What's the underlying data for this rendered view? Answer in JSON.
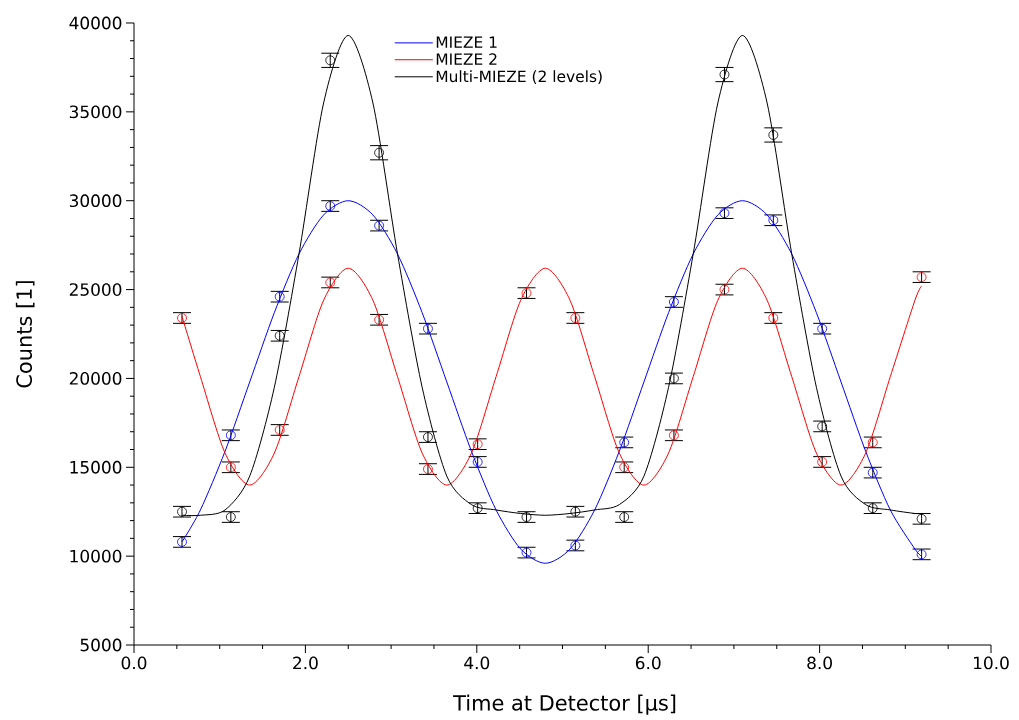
{
  "chart_data": {
    "type": "scatter",
    "xlabel": "Time at Detector [µs]",
    "ylabel": "Counts [1]",
    "xlim": [
      0,
      10
    ],
    "ylim": [
      5000,
      40000
    ],
    "xticks": [
      {
        "value": 0,
        "label": "0.0"
      },
      {
        "value": 2,
        "label": "2.0"
      },
      {
        "value": 4,
        "label": "4.0"
      },
      {
        "value": 6,
        "label": "6.0"
      },
      {
        "value": 8,
        "label": "8.0"
      },
      {
        "value": 10,
        "label": "10.0"
      }
    ],
    "yticks": [
      5000,
      10000,
      15000,
      20000,
      25000,
      30000,
      35000,
      40000
    ],
    "legend": "top",
    "x": [
      0.56,
      1.13,
      1.7,
      2.29,
      2.86,
      3.43,
      4.01,
      4.58,
      5.15,
      5.72,
      6.3,
      6.89,
      7.46,
      8.03,
      8.62,
      9.19
    ],
    "series": [
      {
        "marker": "circle",
        "color": "#0000ff",
        "values": [
          10800,
          16800,
          24600,
          29700,
          28600,
          22800,
          15300,
          10200,
          10600,
          16400,
          24300,
          29300,
          28900,
          22800,
          14700,
          10100
        ],
        "errors": [
          300,
          300,
          300,
          300,
          300,
          300,
          300,
          300,
          300,
          300,
          300,
          300,
          300,
          300,
          300,
          300
        ]
      },
      {
        "marker": "circle",
        "color": "#ff0000",
        "values": [
          23400,
          15000,
          17100,
          25400,
          23300,
          14900,
          16300,
          24800,
          23400,
          15000,
          16800,
          25000,
          23400,
          15300,
          16400,
          25700
        ],
        "errors": [
          300,
          300,
          300,
          300,
          300,
          300,
          300,
          300,
          300,
          300,
          300,
          300,
          300,
          300,
          300,
          300
        ]
      },
      {
        "marker": "circle",
        "color": "#000000",
        "values": [
          12500,
          12200,
          22400,
          37900,
          32700,
          16700,
          12700,
          12200,
          12500,
          12200,
          20000,
          37100,
          33700,
          17300,
          12700,
          12100
        ],
        "errors": [
          300,
          300,
          300,
          400,
          400,
          300,
          300,
          300,
          300,
          300,
          300,
          400,
          400,
          300,
          300,
          300
        ]
      },
      {
        "type": "line",
        "name": "MIEZE 1",
        "color": "#0000ff",
        "x": [
          0.56,
          0.775,
          1.0625,
          1.35,
          1.6375,
          1.925,
          2.2125,
          2.5,
          2.7875,
          3.075,
          3.3625,
          3.65,
          3.9375,
          4.225,
          4.5125,
          4.8,
          5.0875,
          5.375,
          5.6625,
          5.95,
          6.2375,
          6.525,
          6.8125,
          7.1,
          7.3875,
          7.675,
          7.9625,
          8.25,
          8.5375,
          8.825,
          9.1125,
          9.19
        ],
        "values": [
          10800,
          12600,
          15900,
          19800,
          23700,
          27000,
          29200,
          30000,
          29200,
          27000,
          23700,
          19800,
          15900,
          12600,
          10400,
          9600,
          10400,
          12600,
          15900,
          19800,
          23700,
          27000,
          29200,
          30000,
          29200,
          27000,
          23700,
          19800,
          15900,
          12600,
          10400,
          10000
        ]
      },
      {
        "type": "line",
        "name": "MIEZE 2",
        "color": "#ff0000",
        "x": [
          0.56,
          0.775,
          1.0625,
          1.35,
          1.6375,
          1.925,
          2.2125,
          2.5,
          2.7875,
          3.075,
          3.3625,
          3.65,
          3.9375,
          4.225,
          4.5125,
          4.8,
          5.0875,
          5.375,
          5.6625,
          5.95,
          6.2375,
          6.525,
          6.8125,
          7.1,
          7.3875,
          7.675,
          7.9625,
          8.25,
          8.5375,
          8.825,
          9.1125,
          9.19
        ],
        "values": [
          23500,
          20100,
          15800,
          14000,
          15800,
          20100,
          24400,
          26200,
          24400,
          20100,
          15800,
          14000,
          15800,
          20100,
          24400,
          26200,
          24400,
          20100,
          15800,
          14000,
          15800,
          20100,
          24400,
          26200,
          24400,
          20100,
          15800,
          14000,
          15800,
          20100,
          24400,
          25200
        ]
      },
      {
        "type": "line",
        "name": "Multi-MIEZE (2 levels)",
        "color": "#000000",
        "x": [
          0.56,
          0.775,
          1.0625,
          1.35,
          1.6375,
          1.925,
          2.2125,
          2.5,
          2.7875,
          3.075,
          3.3625,
          3.65,
          3.9375,
          4.225,
          4.5125,
          4.8,
          5.0875,
          5.375,
          5.6625,
          5.95,
          6.2375,
          6.525,
          6.8125,
          7.1,
          7.3875,
          7.675,
          7.9625,
          8.25,
          8.5375,
          8.825,
          9.1125,
          9.19
        ],
        "values": [
          12300,
          12300,
          12600,
          14500,
          19500,
          27000,
          35500,
          39300,
          35500,
          27000,
          19500,
          14500,
          12900,
          12600,
          12400,
          12300,
          12400,
          12600,
          12900,
          14500,
          19500,
          27000,
          35500,
          39300,
          35500,
          27000,
          19500,
          14500,
          12900,
          12600,
          12400,
          12400
        ]
      }
    ]
  }
}
